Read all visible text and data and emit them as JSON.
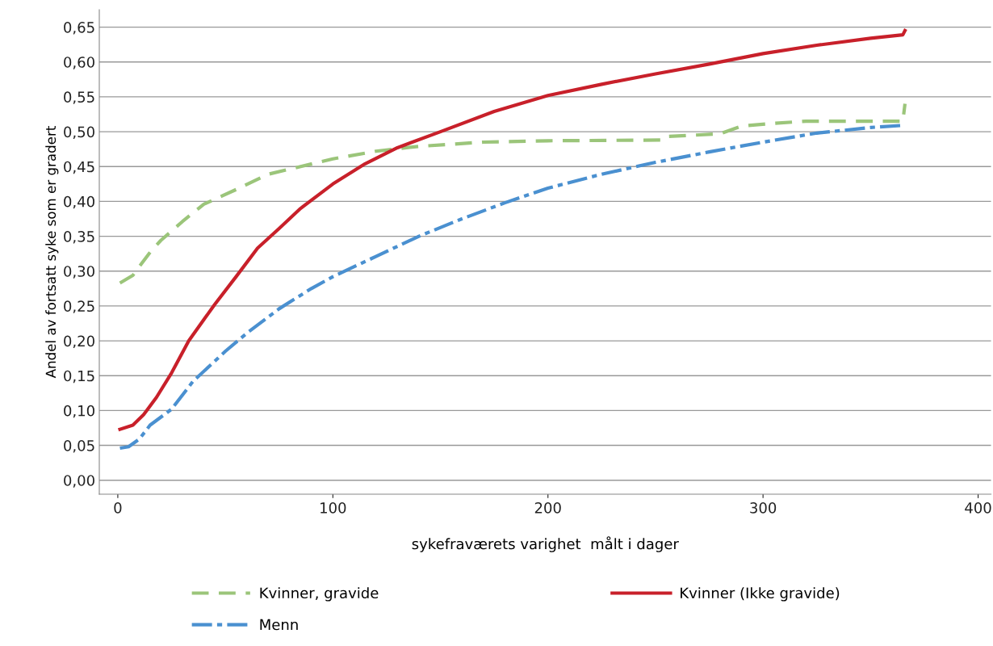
{
  "chart_data": {
    "type": "line",
    "xlabel": "sykefraværets varighet  målt i dager",
    "ylabel": "Andel av fortsatt syke som er gradert",
    "xlim": [
      -8.6,
      406
    ],
    "xticks": [
      0,
      100,
      200,
      300,
      400
    ],
    "ylim": [
      -0.02,
      0.675
    ],
    "yticks": [
      {
        "value": 0,
        "label": "0,00"
      },
      {
        "value": 0.05,
        "label": "0,05"
      },
      {
        "value": 0.1,
        "label": "0,10"
      },
      {
        "value": 0.15,
        "label": "0,15"
      },
      {
        "value": 0.2,
        "label": "0,20"
      },
      {
        "value": 0.25,
        "label": "0,25"
      },
      {
        "value": 0.3,
        "label": "0,30"
      },
      {
        "value": 0.35,
        "label": "0,35"
      },
      {
        "value": 0.4,
        "label": "0,40"
      },
      {
        "value": 0.45,
        "label": "0,45"
      },
      {
        "value": 0.5,
        "label": "0,50"
      },
      {
        "value": 0.55,
        "label": "0,55"
      },
      {
        "value": 0.6,
        "label": "0,60"
      },
      {
        "value": 0.65,
        "label": "0,65"
      }
    ],
    "grid": "y",
    "legend": "bottom",
    "marker": "none",
    "series": [
      {
        "name": "Kvinner, gravide",
        "color": "#9bc57a",
        "line_style": "dashed",
        "x": [
          1,
          7,
          15,
          20,
          30,
          40,
          55,
          70,
          85,
          100,
          120,
          140,
          170,
          200,
          253,
          255,
          280,
          290,
          305,
          320,
          365,
          366
        ],
        "values": [
          0.283,
          0.294,
          0.327,
          0.344,
          0.371,
          0.396,
          0.417,
          0.439,
          0.45,
          0.461,
          0.472,
          0.479,
          0.485,
          0.487,
          0.488,
          0.493,
          0.497,
          0.508,
          0.512,
          0.515,
          0.515,
          0.54
        ]
      },
      {
        "name": "Kvinner (Ikke gravide)",
        "color": "#c8202a",
        "line_style": "solid",
        "x": [
          1,
          7,
          12,
          18,
          25,
          33,
          45,
          55,
          65,
          75,
          85,
          100,
          115,
          130,
          150,
          175,
          200,
          225,
          250,
          275,
          300,
          325,
          350,
          365,
          366
        ],
        "values": [
          0.073,
          0.079,
          0.094,
          0.119,
          0.154,
          0.2,
          0.252,
          0.292,
          0.333,
          0.361,
          0.39,
          0.425,
          0.454,
          0.477,
          0.5,
          0.529,
          0.552,
          0.568,
          0.583,
          0.597,
          0.612,
          0.624,
          0.634,
          0.639,
          0.645
        ]
      },
      {
        "name": "Menn",
        "color": "#4a90d0",
        "line_style": "dashdot",
        "x": [
          1,
          5,
          10,
          15,
          25,
          35,
          50,
          60,
          75,
          90,
          100,
          120,
          140,
          160,
          180,
          200,
          225,
          250,
          275,
          300,
          325,
          350,
          365
        ],
        "values": [
          0.046,
          0.048,
          0.059,
          0.079,
          0.102,
          0.142,
          0.185,
          0.211,
          0.246,
          0.275,
          0.292,
          0.321,
          0.35,
          0.375,
          0.398,
          0.419,
          0.439,
          0.456,
          0.471,
          0.485,
          0.498,
          0.506,
          0.509
        ]
      }
    ]
  }
}
